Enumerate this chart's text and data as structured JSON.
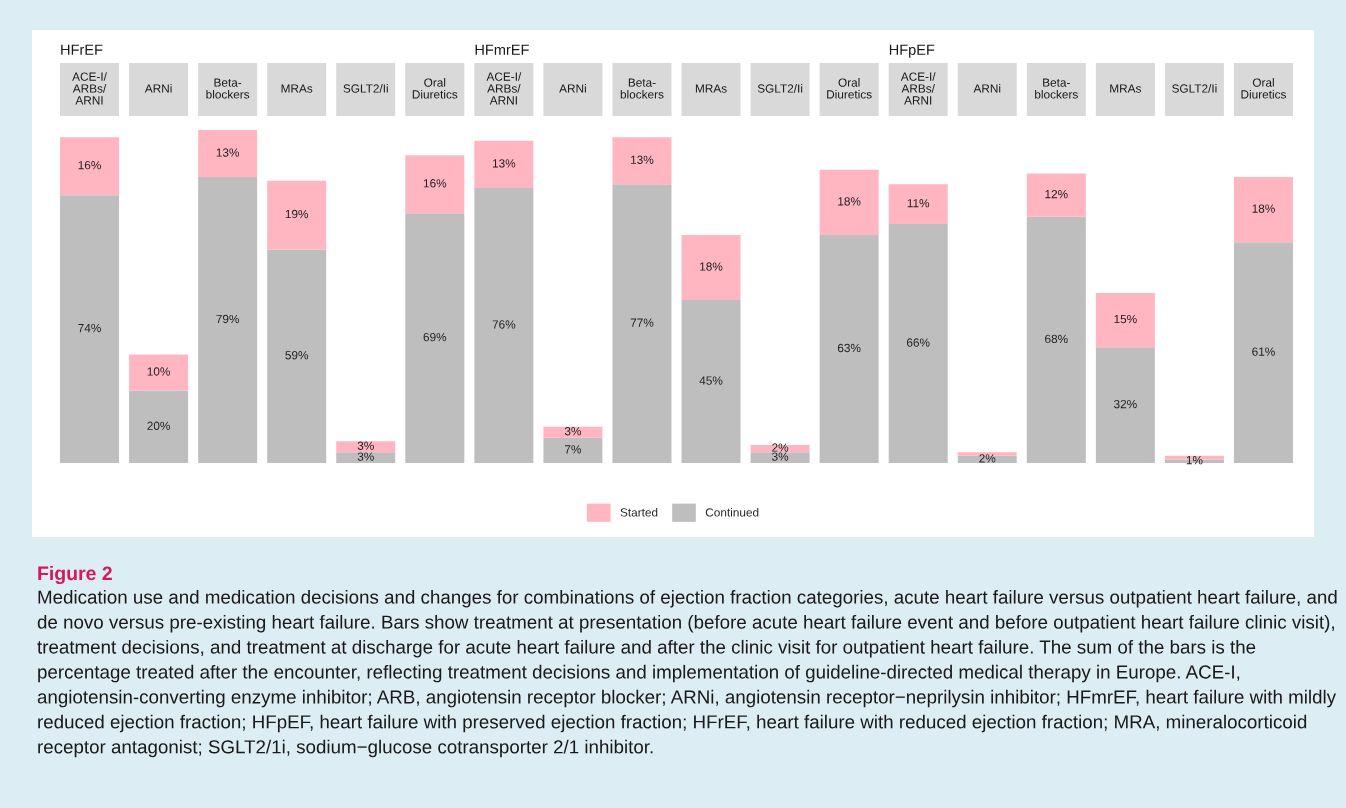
{
  "chart_data": [
    {
      "type": "bar",
      "stacked": true,
      "title": "HFrEF",
      "categories": [
        "ACE-I/\nARBs/\nARNI",
        "ARNi",
        "Beta-\nblockers",
        "MRAs",
        "SGLT2/Ii",
        "Oral\nDiuretics"
      ],
      "legend": "bottom",
      "series": [
        {
          "name": "Continued",
          "color": "#bebebe",
          "values": [
            74,
            20,
            79,
            59,
            3,
            69
          ],
          "value_labels": [
            "74%",
            "20%",
            "79%",
            "59%",
            "3%",
            "69%"
          ]
        },
        {
          "name": "Started",
          "color": "#ffb6c1",
          "values": [
            16,
            10,
            13,
            19,
            3,
            16
          ],
          "value_labels": [
            "16%",
            "10%",
            "13%",
            "19%",
            "3%",
            "16%"
          ]
        }
      ],
      "annotations": [
        "Figure 2",
        "Medication use and medication decisions and changes for combinations of ejection fraction categories, acute heart failure versus outpatient heart failure, and de novo versus pre-existing heart failure. Bars show treatment at presentation (before acute heart failure event and before outpatient heart failure clinic visit), treatment decisions, and treatment at discharge for acute heart failure and after the clinic visit for outpatient heart failure. The sum of the bars is the percentage treated after the encounter, reflecting treatment decisions and implementation of guideline-directed medical therapy in Europe. ACE-I, angiotensin-converting enzyme inhibitor; ARB, angiotensin receptor blocker; ARNi, angiotensin receptor−neprilysin inhibitor; HFmrEF, heart failure with mildly reduced ejection fraction; HFpEF, heart failure with preserved ejection fraction; HFrEF, heart failure with reduced ejection fraction; MRA, mineralocorticoid receptor antagonist; SGLT2/1i, sodium−glucose cotransporter 2/1 inhibitor."
      ]
    },
    {
      "type": "bar",
      "stacked": true,
      "title": "HFmrEF",
      "categories": [
        "ACE-I/\nARBs/\nARNI",
        "ARNi",
        "Beta-\nblockers",
        "MRAs",
        "SGLT2/Ii",
        "Oral\nDiuretics"
      ],
      "series": [
        {
          "color": "#bebebe",
          "values": [
            76,
            7,
            77,
            45,
            3,
            63
          ],
          "value_labels": [
            "76%",
            "7%",
            "77%",
            "45%",
            "3%",
            "63%"
          ]
        },
        {
          "color": "#ffb6c1",
          "values": [
            13,
            3,
            13,
            18,
            2,
            18
          ],
          "value_labels": [
            "13%",
            "3%",
            "13%",
            "18%",
            "2%",
            "18%"
          ]
        }
      ]
    },
    {
      "type": "bar",
      "stacked": true,
      "title": "HFpEF",
      "categories": [
        "ACE-I/\nARBs/\nARNI",
        "ARNi",
        "Beta-\nblockers",
        "MRAs",
        "SGLT2/Ii",
        "Oral\nDiuretics"
      ],
      "series": [
        {
          "color": "#bebebe",
          "values": [
            66,
            2,
            68,
            32,
            1,
            61
          ],
          "value_labels": [
            "66%",
            "2%",
            "68%",
            "32%",
            "1%",
            "61%"
          ]
        },
        {
          "color": "#ffb6c1",
          "values": [
            11,
            1,
            12,
            15,
            1,
            18
          ],
          "value_labels": [
            "11%",
            null,
            "12%",
            "15%",
            null,
            "18%"
          ]
        }
      ]
    }
  ]
}
